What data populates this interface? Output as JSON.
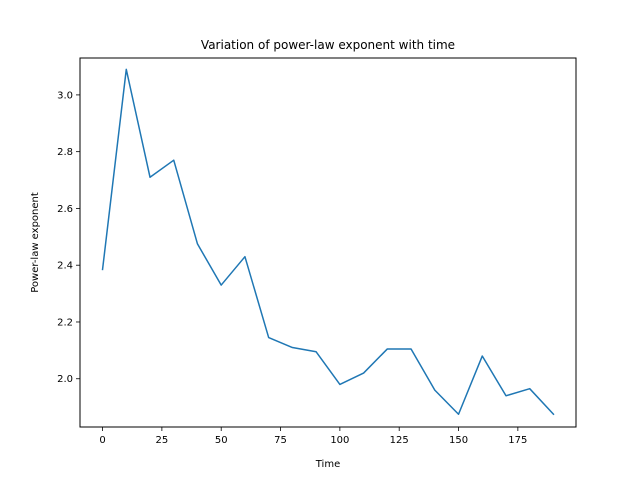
{
  "chart_data": {
    "type": "line",
    "title": "Variation of power-law exponent with time",
    "xlabel": "Time",
    "ylabel": "Power-law exponent",
    "xlim": [
      -9.5,
      199.5
    ],
    "ylim": [
      1.83,
      3.13
    ],
    "xticks": [
      0,
      25,
      50,
      75,
      100,
      125,
      150,
      175
    ],
    "yticks": [
      2.0,
      2.2,
      2.4,
      2.6,
      2.8,
      3.0
    ],
    "grid": false,
    "series": [
      {
        "color": "#1f77b4",
        "x": [
          0,
          10,
          20,
          30,
          40,
          50,
          60,
          70,
          80,
          90,
          100,
          110,
          120,
          130,
          140,
          150,
          160,
          170,
          180,
          190
        ],
        "y": [
          2.385,
          3.09,
          2.71,
          2.77,
          2.475,
          2.33,
          2.43,
          2.145,
          2.11,
          2.095,
          1.98,
          2.02,
          2.105,
          2.105,
          1.96,
          1.875,
          2.08,
          1.94,
          1.965,
          1.875
        ]
      }
    ]
  }
}
